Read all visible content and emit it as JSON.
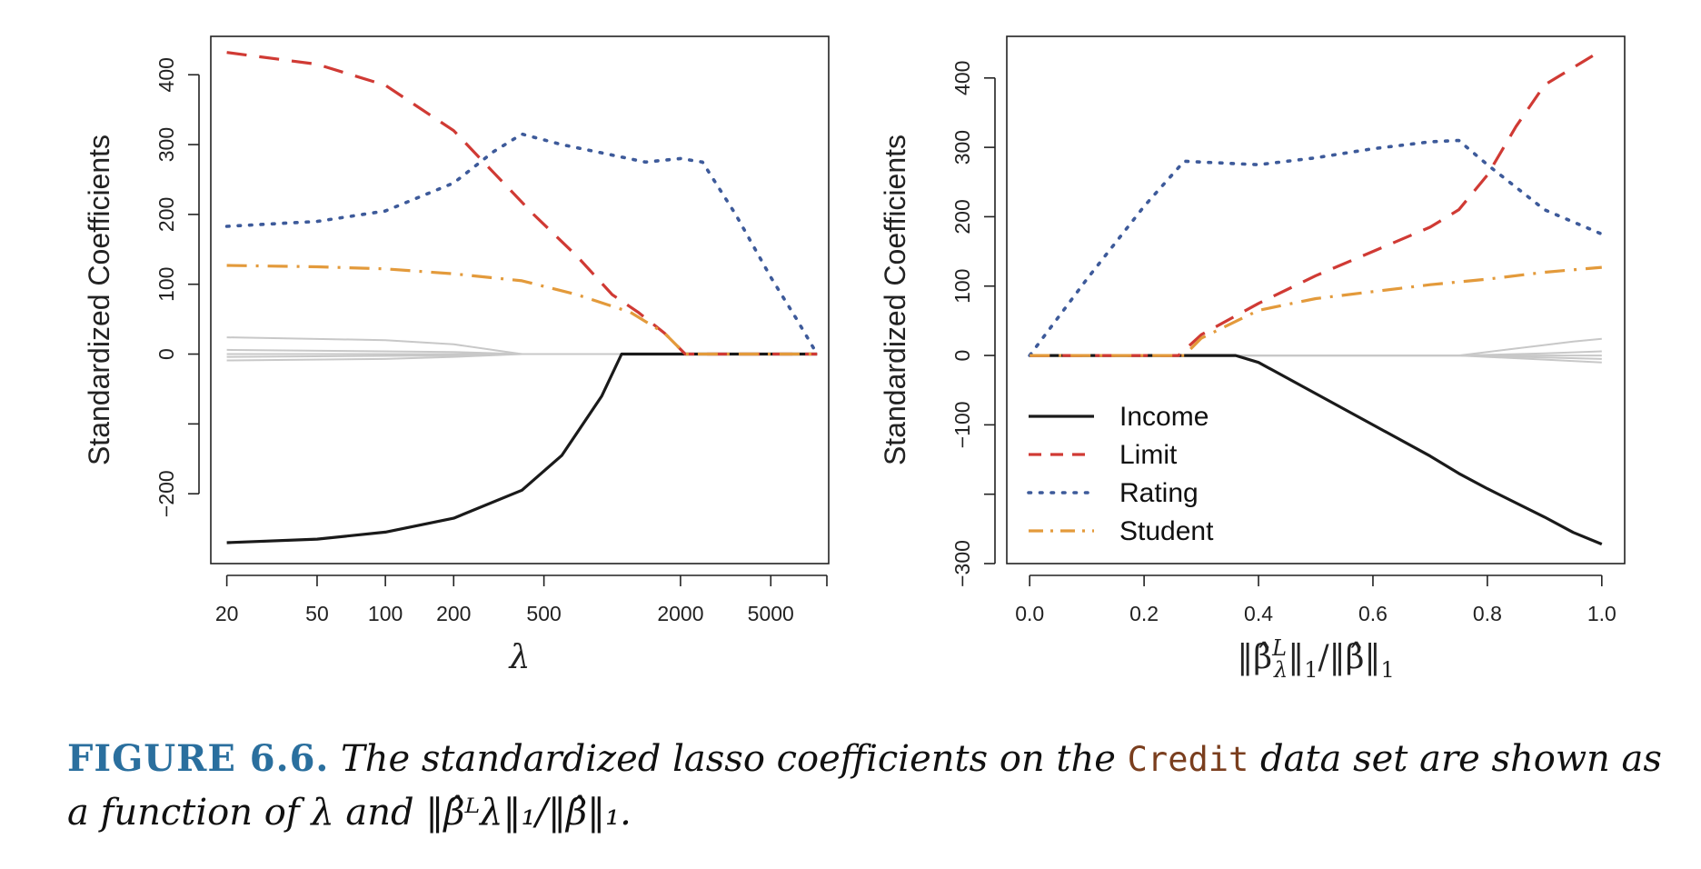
{
  "chart_data": [
    {
      "type": "line",
      "ylabel": "Standardized Coefficients",
      "xlabel": "λ",
      "x_scale": "log",
      "xlim": [
        17,
        9000
      ],
      "ylim": [
        -300,
        455
      ],
      "x_ticks": [
        20,
        50,
        100,
        200,
        500,
        2000,
        5000
      ],
      "x_tick_labels": [
        "20",
        "50",
        "100",
        "200",
        "500",
        "2000",
        "5000"
      ],
      "y_ticks": [
        -200,
        -100,
        0,
        100,
        200,
        300,
        400
      ],
      "y_tick_labels": [
        "−200",
        "",
        "0",
        "100",
        "200",
        "300",
        "400"
      ],
      "series": [
        {
          "name": "Income",
          "style": "solid",
          "color": "#1a1a1a",
          "points": [
            [
              20,
              -270
            ],
            [
              50,
              -265
            ],
            [
              100,
              -255
            ],
            [
              200,
              -235
            ],
            [
              400,
              -195
            ],
            [
              600,
              -145
            ],
            [
              900,
              -60
            ],
            [
              1100,
              0
            ],
            [
              8000,
              0
            ]
          ]
        },
        {
          "name": "Limit",
          "style": "dashed",
          "color": "#d03a34",
          "points": [
            [
              20,
              432
            ],
            [
              50,
              415
            ],
            [
              100,
              385
            ],
            [
              200,
              320
            ],
            [
              300,
              260
            ],
            [
              450,
              200
            ],
            [
              700,
              140
            ],
            [
              1000,
              85
            ],
            [
              1300,
              60
            ],
            [
              1700,
              30
            ],
            [
              2100,
              0
            ],
            [
              8000,
              0
            ]
          ]
        },
        {
          "name": "Rating",
          "style": "dotted",
          "color": "#3d5a9a",
          "points": [
            [
              20,
              183
            ],
            [
              50,
              190
            ],
            [
              100,
              205
            ],
            [
              200,
              245
            ],
            [
              300,
              290
            ],
            [
              400,
              315
            ],
            [
              600,
              300
            ],
            [
              1000,
              285
            ],
            [
              1400,
              275
            ],
            [
              2000,
              280
            ],
            [
              2500,
              275
            ],
            [
              3500,
              200
            ],
            [
              5000,
              110
            ],
            [
              6500,
              50
            ],
            [
              8000,
              0
            ]
          ]
        },
        {
          "name": "Student",
          "style": "dashdot",
          "color": "#e39a3b",
          "points": [
            [
              20,
              127
            ],
            [
              50,
              125
            ],
            [
              100,
              122
            ],
            [
              200,
              115
            ],
            [
              400,
              105
            ],
            [
              700,
              85
            ],
            [
              1200,
              60
            ],
            [
              1700,
              30
            ],
            [
              2100,
              0
            ],
            [
              8000,
              0
            ]
          ]
        },
        {
          "name": "",
          "style": "solid",
          "color": "#c8c8c8",
          "points": [
            [
              20,
              24
            ],
            [
              100,
              20
            ],
            [
              200,
              14
            ],
            [
              400,
              0
            ],
            [
              8000,
              0
            ]
          ]
        },
        {
          "name": "",
          "style": "solid",
          "color": "#c8c8c8",
          "points": [
            [
              20,
              6
            ],
            [
              200,
              3
            ],
            [
              400,
              0
            ],
            [
              8000,
              0
            ]
          ]
        },
        {
          "name": "",
          "style": "solid",
          "color": "#c8c8c8",
          "points": [
            [
              20,
              0
            ],
            [
              8000,
              0
            ]
          ]
        },
        {
          "name": "",
          "style": "solid",
          "color": "#c8c8c8",
          "points": [
            [
              20,
              -4
            ],
            [
              200,
              -2
            ],
            [
              400,
              0
            ],
            [
              8000,
              0
            ]
          ]
        },
        {
          "name": "",
          "style": "solid",
          "color": "#c8c8c8",
          "points": [
            [
              20,
              -9
            ],
            [
              100,
              -7
            ],
            [
              200,
              -4
            ],
            [
              400,
              0
            ],
            [
              8000,
              0
            ]
          ]
        }
      ]
    },
    {
      "type": "line",
      "ylabel": "Standardized Coefficients",
      "xlabel": "‖β̂ᴸλ‖₁/‖β̂‖₁",
      "xlim": [
        -0.04,
        1.04
      ],
      "ylim": [
        -300,
        460
      ],
      "x_ticks": [
        0.0,
        0.2,
        0.4,
        0.6,
        0.8,
        1.0
      ],
      "x_tick_labels": [
        "0.0",
        "0.2",
        "0.4",
        "0.6",
        "0.8",
        "1.0"
      ],
      "y_ticks": [
        -300,
        -200,
        -100,
        0,
        100,
        200,
        300,
        400
      ],
      "y_tick_labels": [
        "−300",
        "",
        "−100",
        "0",
        "100",
        "200",
        "300",
        "400"
      ],
      "legend": {
        "position": "bottom-left",
        "entries": [
          "Income",
          "Limit",
          "Rating",
          "Student"
        ]
      },
      "series": [
        {
          "name": "Income",
          "style": "solid",
          "color": "#1a1a1a",
          "points": [
            [
              0,
              0
            ],
            [
              0.36,
              0
            ],
            [
              0.4,
              -10
            ],
            [
              0.5,
              -55
            ],
            [
              0.6,
              -100
            ],
            [
              0.7,
              -145
            ],
            [
              0.75,
              -170
            ],
            [
              0.8,
              -192
            ],
            [
              0.9,
              -233
            ],
            [
              0.95,
              -255
            ],
            [
              1.0,
              -272
            ]
          ]
        },
        {
          "name": "Limit",
          "style": "dashed",
          "color": "#d03a34",
          "points": [
            [
              0,
              0
            ],
            [
              0.26,
              0
            ],
            [
              0.3,
              30
            ],
            [
              0.4,
              75
            ],
            [
              0.5,
              115
            ],
            [
              0.6,
              150
            ],
            [
              0.7,
              185
            ],
            [
              0.75,
              210
            ],
            [
              0.8,
              260
            ],
            [
              0.85,
              330
            ],
            [
              0.9,
              390
            ],
            [
              1.0,
              440
            ]
          ]
        },
        {
          "name": "Rating",
          "style": "dotted",
          "color": "#3d5a9a",
          "points": [
            [
              0,
              0
            ],
            [
              0.1,
              110
            ],
            [
              0.2,
              215
            ],
            [
              0.27,
              280
            ],
            [
              0.4,
              275
            ],
            [
              0.5,
              285
            ],
            [
              0.6,
              298
            ],
            [
              0.7,
              308
            ],
            [
              0.75,
              310
            ],
            [
              0.8,
              275
            ],
            [
              0.9,
              210
            ],
            [
              1.0,
              175
            ]
          ]
        },
        {
          "name": "Student",
          "style": "dashdot",
          "color": "#e39a3b",
          "points": [
            [
              0,
              0
            ],
            [
              0.27,
              0
            ],
            [
              0.3,
              25
            ],
            [
              0.4,
              65
            ],
            [
              0.5,
              82
            ],
            [
              0.6,
              92
            ],
            [
              0.7,
              102
            ],
            [
              0.8,
              110
            ],
            [
              0.9,
              120
            ],
            [
              1.0,
              127
            ]
          ]
        },
        {
          "name": "",
          "style": "solid",
          "color": "#c8c8c8",
          "points": [
            [
              0,
              0
            ],
            [
              0.75,
              0
            ],
            [
              0.85,
              10
            ],
            [
              0.95,
              20
            ],
            [
              1.0,
              24
            ]
          ]
        },
        {
          "name": "",
          "style": "solid",
          "color": "#c8c8c8",
          "points": [
            [
              0,
              0
            ],
            [
              0.75,
              0
            ],
            [
              0.9,
              3
            ],
            [
              1.0,
              6
            ]
          ]
        },
        {
          "name": "",
          "style": "solid",
          "color": "#c8c8c8",
          "points": [
            [
              0,
              0
            ],
            [
              1.0,
              0
            ]
          ]
        },
        {
          "name": "",
          "style": "solid",
          "color": "#c8c8c8",
          "points": [
            [
              0,
              0
            ],
            [
              0.75,
              0
            ],
            [
              0.9,
              -3
            ],
            [
              1.0,
              -5
            ]
          ]
        },
        {
          "name": "",
          "style": "solid",
          "color": "#c8c8c8",
          "points": [
            [
              0,
              0
            ],
            [
              0.75,
              0
            ],
            [
              0.9,
              -6
            ],
            [
              1.0,
              -10
            ]
          ]
        }
      ]
    }
  ],
  "caption": {
    "label": "FIGURE 6.6.",
    "text_before": "The standardized lasso coefficients on the",
    "code": "Credit",
    "text_after": "data set are shown as a function of λ and ‖β̂ᴸλ‖₁/‖β̂‖₁."
  }
}
